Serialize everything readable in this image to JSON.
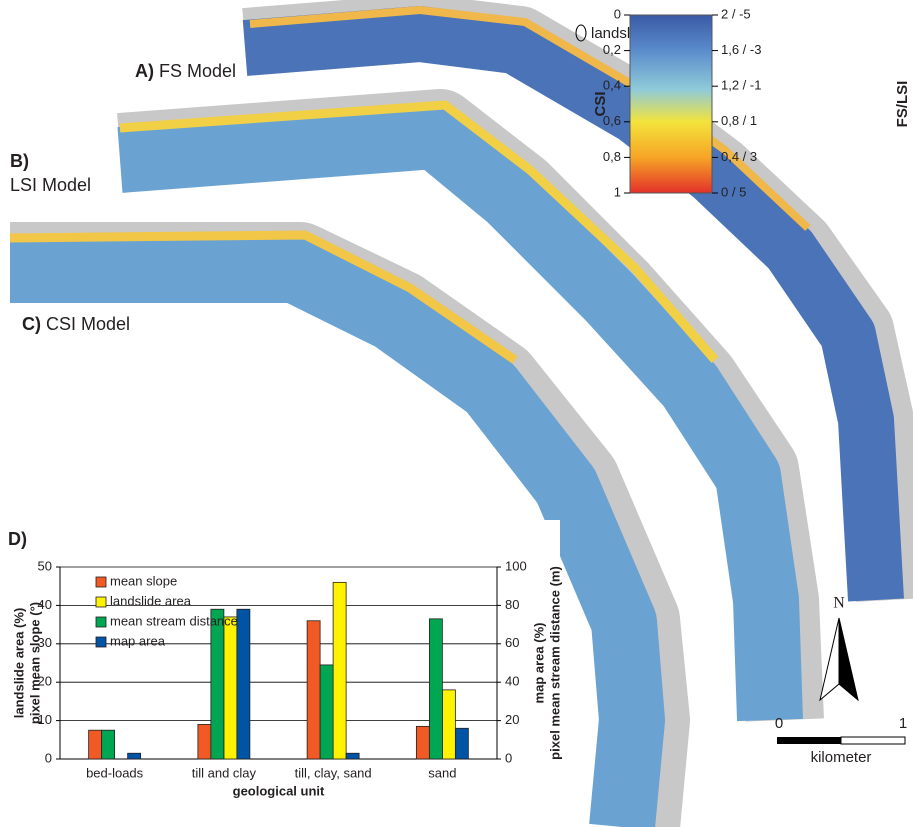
{
  "maps": {
    "labels": [
      {
        "letter": "A)",
        "name": "FS Model"
      },
      {
        "letter": "B)",
        "name": "LSI Model"
      },
      {
        "letter": "C)",
        "name": "CSI Model"
      }
    ],
    "landslide_legend": "landslide areas",
    "colorbar": {
      "left_title": "CSI",
      "right_title": "FS/LSI",
      "left_ticks": [
        "0",
        "0,2",
        "0,4",
        "0,6",
        "0,8",
        "1"
      ],
      "right_ticks": [
        "2 / -5",
        "1,6 / -3",
        "1,2 / -1",
        "0,8 / 1",
        "0,4 / 3",
        "0 / 5"
      ]
    },
    "north": "N",
    "scale": {
      "start": "0",
      "end": "1",
      "unit": "kilometer"
    }
  },
  "chart_data": {
    "type": "bar",
    "panel_label": "D)",
    "categories": [
      "bed-loads",
      "till and clay",
      "till, clay, sand",
      "sand"
    ],
    "series": [
      {
        "name": "mean slope",
        "color": "#f15a24",
        "values": [
          7.5,
          9,
          36,
          8.5
        ]
      },
      {
        "name": "landslide area",
        "color": "#fff200",
        "values": [
          0,
          37,
          46,
          18
        ]
      },
      {
        "name": "mean stream distance",
        "color": "#00a651",
        "values": [
          15,
          78,
          49,
          73
        ],
        "axis": "y2"
      },
      {
        "name": "map area",
        "color": "#0054a6",
        "values": [
          3,
          78,
          3,
          16
        ],
        "axis": "y2"
      }
    ],
    "ylim": [
      0,
      50
    ],
    "yticks": [
      0,
      10,
      20,
      30,
      40,
      50
    ],
    "y2lim": [
      0,
      100
    ],
    "y2ticks": [
      0,
      20,
      40,
      60,
      80,
      100
    ],
    "ylabel": [
      "landslide area (%)",
      "pixel mean slope (°)"
    ],
    "y2label": [
      "map area (%)",
      "pixel mean stream distance (m)"
    ],
    "xlabel": "geological unit",
    "grid": true
  }
}
